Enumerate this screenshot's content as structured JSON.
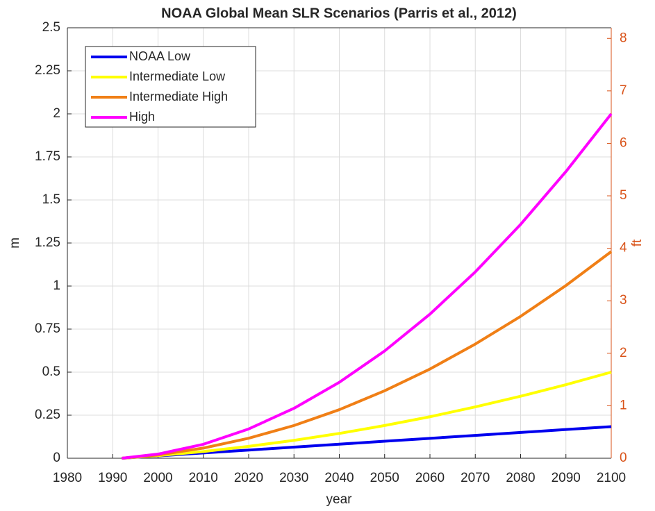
{
  "chart_data": {
    "type": "line",
    "title": "NOAA Global Mean SLR Scenarios (Parris et al., 2012)",
    "xlabel": "year",
    "ylabel": "m",
    "y2label": "ft",
    "x": [
      1992,
      2000,
      2010,
      2020,
      2030,
      2040,
      2050,
      2060,
      2070,
      2080,
      2090,
      2100
    ],
    "series": [
      {
        "name": "NOAA Low",
        "color": "#0000ee",
        "values": [
          0,
          0.0136,
          0.0306,
          0.0476,
          0.0646,
          0.0816,
          0.0986,
          0.1156,
          0.1326,
          0.1496,
          0.1666,
          0.1836
        ]
      },
      {
        "name": "Intermediate Low",
        "color": "#ffff00",
        "values": [
          0,
          0.015,
          0.039,
          0.069,
          0.104,
          0.144,
          0.19,
          0.241,
          0.298,
          0.36,
          0.427,
          0.5
        ]
      },
      {
        "name": "Intermediate High",
        "color": "#f07f16",
        "values": [
          0,
          0.019,
          0.059,
          0.116,
          0.19,
          0.282,
          0.392,
          0.518,
          0.663,
          0.824,
          1.003,
          1.2
        ]
      },
      {
        "name": "High",
        "color": "#ff00ff",
        "values": [
          0,
          0.024,
          0.081,
          0.17,
          0.29,
          0.441,
          0.623,
          0.837,
          1.082,
          1.358,
          1.665,
          2.0
        ]
      }
    ],
    "xlim": [
      1980,
      2100
    ],
    "xticks": [
      1980,
      1990,
      2000,
      2010,
      2020,
      2030,
      2040,
      2050,
      2060,
      2070,
      2080,
      2090,
      2100
    ],
    "ylim": [
      0,
      2.5
    ],
    "yticks": [
      0,
      0.25,
      0.5,
      0.75,
      1,
      1.25,
      1.5,
      1.75,
      2,
      2.25,
      2.5
    ],
    "y2lim": [
      0,
      8.2021
    ],
    "y2ticks": [
      0,
      1,
      2,
      3,
      4,
      5,
      6,
      7,
      8
    ],
    "y2color": "#d95319",
    "grid": true,
    "legend": "northwest"
  }
}
